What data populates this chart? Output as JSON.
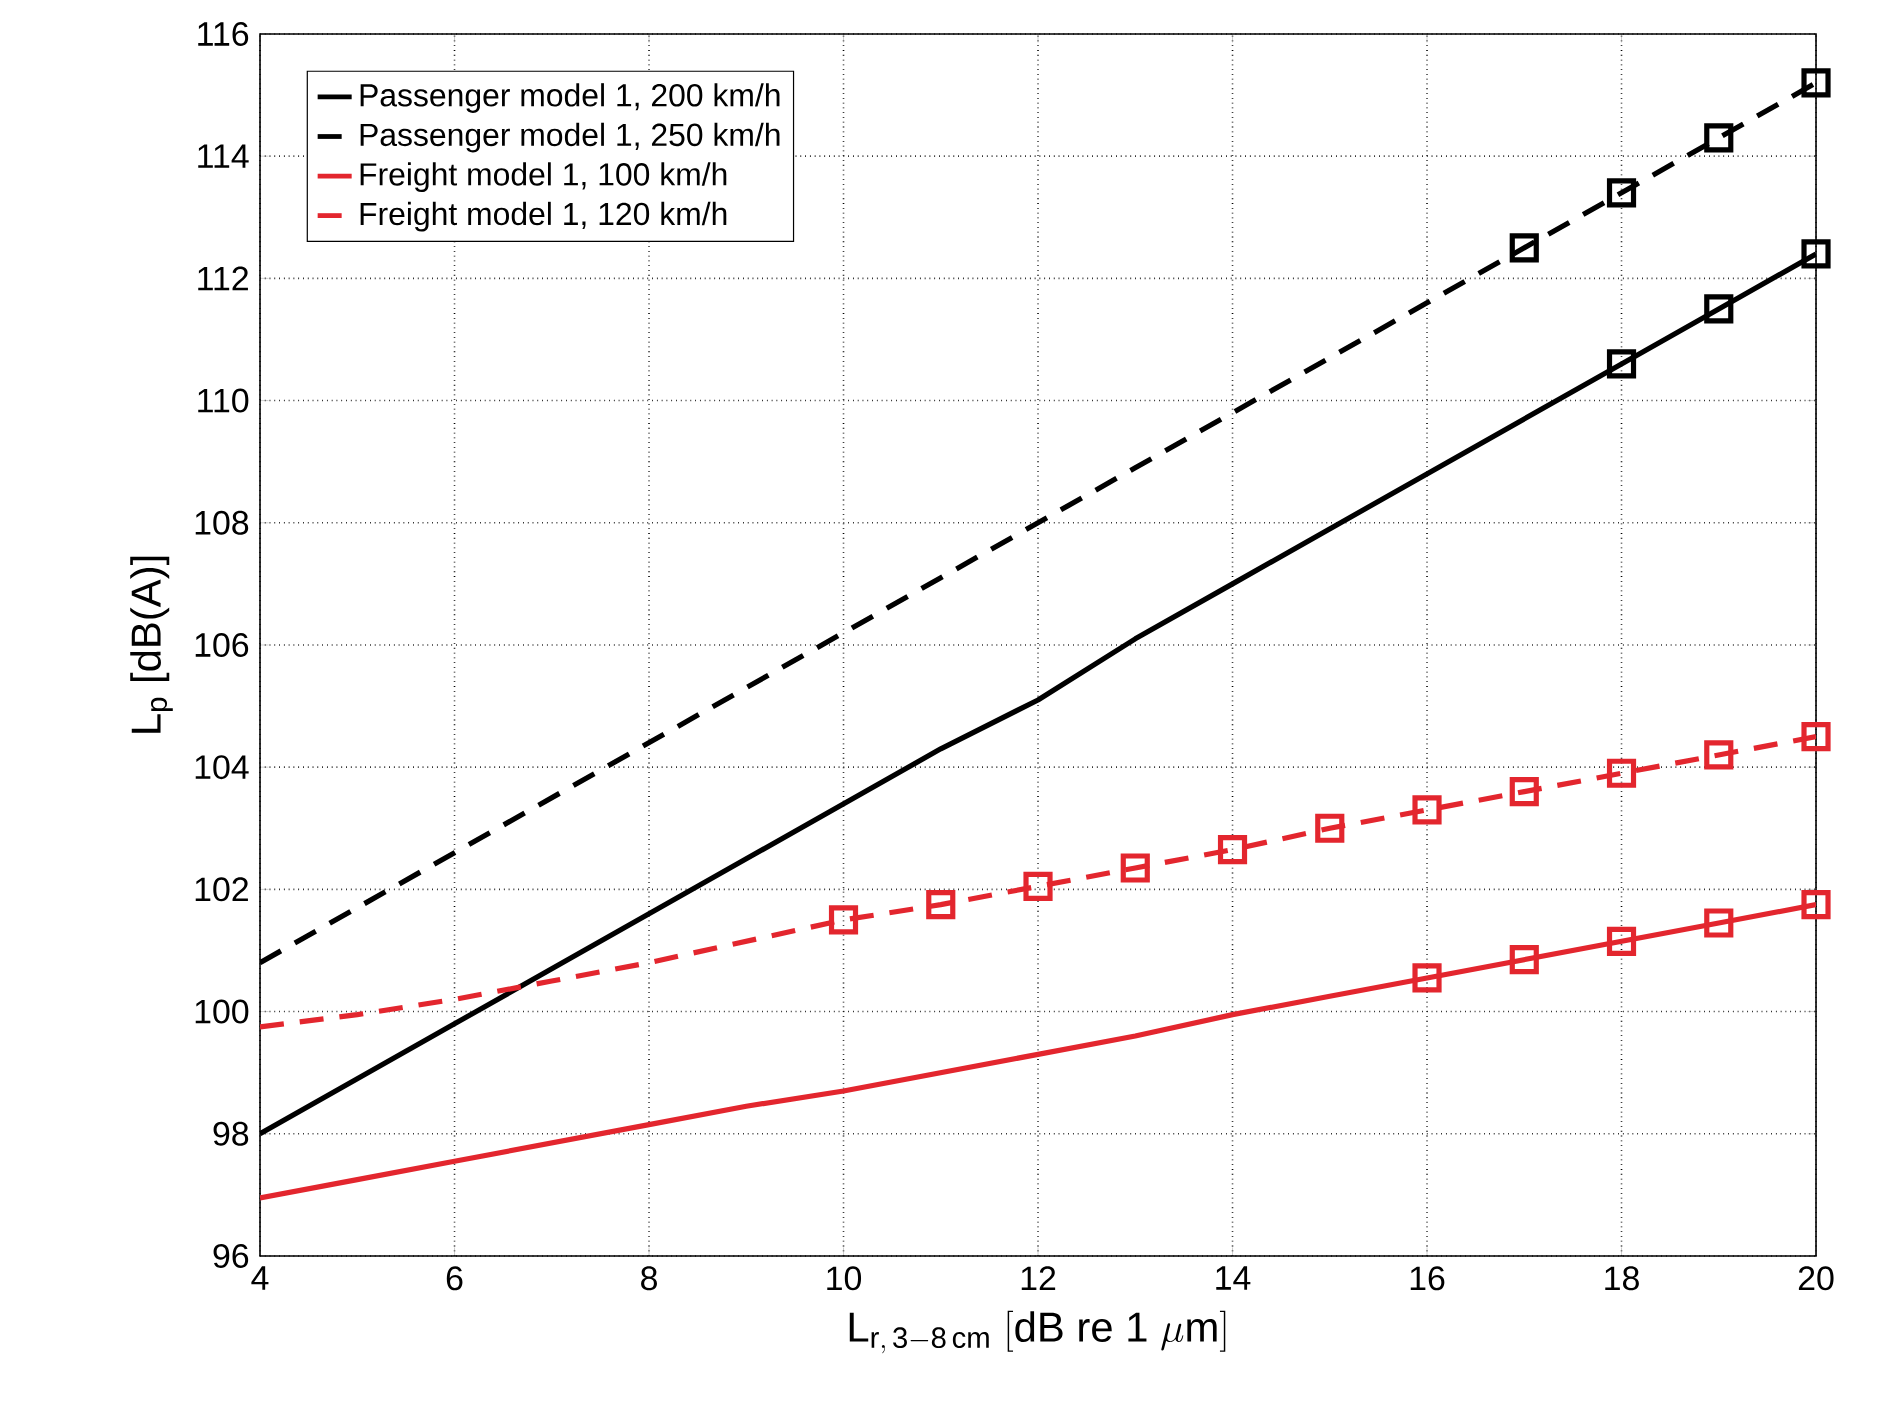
{
  "chart_data": {
    "type": "line",
    "xlabel": "\\mathrm{L}_{\\mathrm{r,\\,3-8\\,cm}}\\ \\mathrm{[dB\\ re\\ 1\\ }\\mu\\mathrm{m]}",
    "ylabel": "L$_{p}$ [dB(A)]",
    "x": [
      4,
      5,
      6,
      7,
      8,
      9,
      10,
      11,
      12,
      13,
      14,
      15,
      16,
      17,
      18,
      19,
      20
    ],
    "xlim": [
      4,
      20
    ],
    "xticks": [
      4,
      6,
      8,
      10,
      12,
      14,
      16,
      18,
      20
    ],
    "ylim": [
      96,
      116
    ],
    "yticks": [
      96,
      98,
      100,
      102,
      104,
      106,
      108,
      110,
      112,
      114,
      116
    ],
    "grid": true,
    "legend": "top left",
    "series": [
      {
        "name": "Passenger model 1, 200 km/h",
        "line_style": "solid",
        "color": "#000000",
        "values": [
          98.0,
          98.9,
          99.8,
          100.7,
          101.6,
          102.5,
          103.4,
          104.3,
          105.1,
          106.1,
          107.0,
          107.9,
          108.8,
          109.7,
          110.6,
          111.5,
          112.4
        ]
      },
      {
        "name": "Passenger model 1, 250 km/h",
        "line_style": "dashed",
        "color": "#000000",
        "values": [
          100.8,
          101.7,
          102.6,
          103.5,
          104.4,
          105.3,
          106.2,
          107.1,
          108.0,
          108.9,
          109.8,
          110.7,
          111.6,
          112.5,
          113.4,
          114.3,
          115.2
        ]
      },
      {
        "name": "Freight model 1, 100 km/h",
        "line_style": "solid",
        "color": "#e3262e",
        "values": [
          96.95,
          97.25,
          97.55,
          97.85,
          98.15,
          98.45,
          98.7,
          99.0,
          99.3,
          99.6,
          99.95,
          100.25,
          100.55,
          100.85,
          101.15,
          101.45,
          101.75
        ]
      },
      {
        "name": "Freight model 1, 120 km/h",
        "line_style": "dashed",
        "color": "#e3262e",
        "values": [
          99.75,
          99.95,
          100.2,
          100.5,
          100.8,
          101.15,
          101.5,
          101.75,
          102.05,
          102.35,
          102.65,
          103.0,
          103.3,
          103.6,
          103.9,
          104.2,
          104.5
        ]
      },
      {
        "type": "scatter",
        "marker": "square",
        "color": "#000000",
        "x": [
          18,
          19,
          20
        ],
        "values": [
          110.6,
          111.5,
          112.4
        ]
      },
      {
        "type": "scatter",
        "marker": "square",
        "color": "#000000",
        "x": [
          17,
          18,
          19,
          20
        ],
        "values": [
          112.5,
          113.4,
          114.3,
          115.2
        ]
      },
      {
        "type": "scatter",
        "marker": "square",
        "color": "#e3262e",
        "x": [
          16,
          17,
          18,
          19,
          20
        ],
        "values": [
          100.55,
          100.85,
          101.15,
          101.45,
          101.75
        ]
      },
      {
        "type": "scatter",
        "marker": "square",
        "color": "#e3262e",
        "x": [
          10,
          11,
          12,
          13,
          14,
          15,
          16,
          17,
          18,
          19,
          20
        ],
        "values": [
          101.5,
          101.75,
          102.05,
          102.35,
          102.65,
          103.0,
          103.3,
          103.6,
          103.9,
          104.2,
          104.5
        ]
      }
    ]
  }
}
